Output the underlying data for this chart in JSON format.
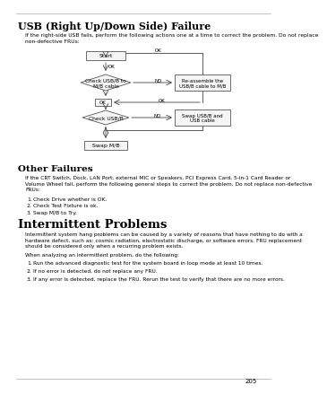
{
  "page_title": "USB (Right Up/Down Side) Failure",
  "page_number": "205",
  "intro_text": "If the right-side USB fails, perform the following actions one at a time to correct the problem. Do not replace\nnon-defective FRUs:",
  "section2_title": "Other Failures",
  "section2_text": "If the CRT Switch, Dock, LAN Port, external MIC or Speakers, PCI Express Card, 5-in-1 Card Reader or\nVolume Wheel fail, perform the following general steps to correct the problem. Do not replace non-defective\nFRUs:",
  "section2_items": [
    "Check Drive whether is OK.",
    "Check Test Fixture is ok.",
    "Swap M/B to Try."
  ],
  "section3_title": "Intermittent Problems",
  "section3_text1": "Intermittent system hang problems can be caused by a variety of reasons that have nothing to do with a\nhardware defect, such as: cosmic radiation, electrostatic discharge, or software errors. FRU replacement\nshould be considered only when a recurring problem exists.",
  "section3_text2": "When analyzing an intermittent problem, do the following:",
  "section3_items": [
    "Run the advanced diagnostic test for the system board in loop mode at least 10 times.",
    "If no error is detected, do not replace any FRU.",
    "If any error is detected, replace the FRU. Rerun the test to verify that there are no more errors."
  ],
  "bg_color": "#ffffff",
  "text_color": "#000000",
  "box_fill": "#f5f5f5",
  "box_edge": "#555555",
  "arrow_color": "#444444"
}
